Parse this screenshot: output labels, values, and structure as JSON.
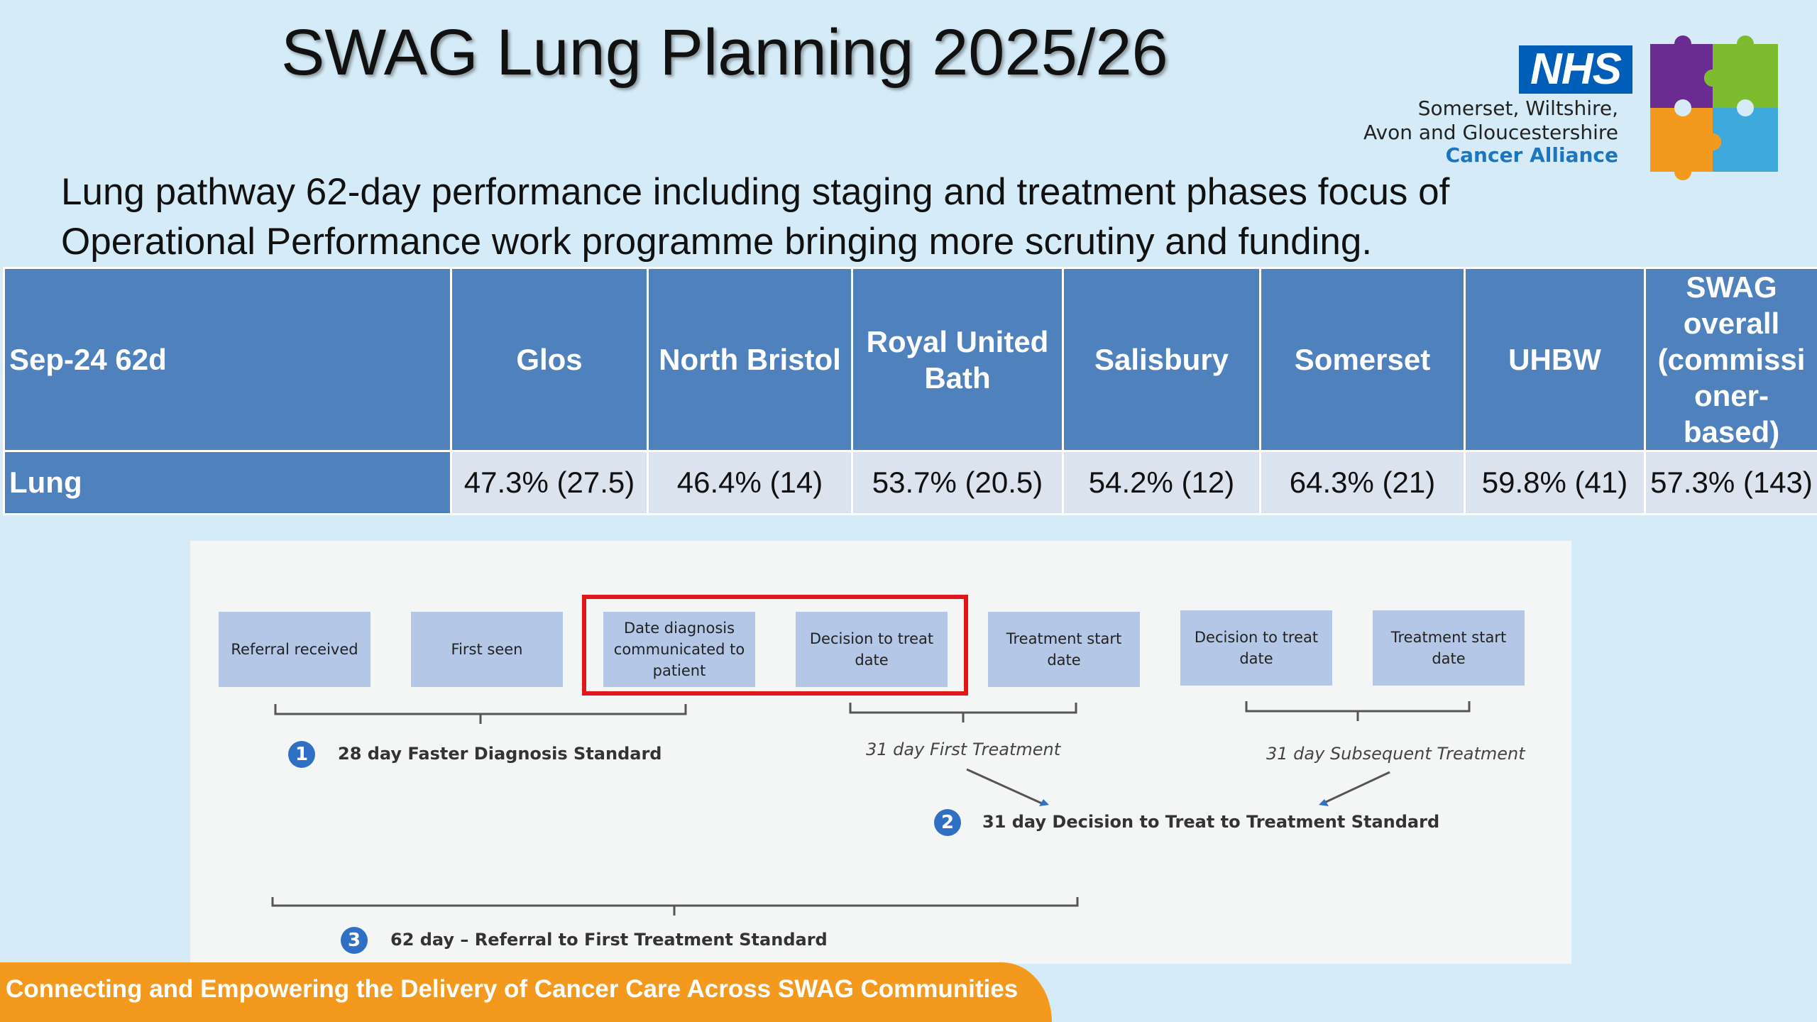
{
  "slide": {
    "title": "SWAG Lung Planning 2025/26",
    "subtitle": "Lung pathway 62-day performance including staging and treatment phases focus of Operational Performance work programme bringing more scrutiny and funding."
  },
  "logo": {
    "nhs": "NHS",
    "line1": "Somerset, Wiltshire,",
    "line2": "Avon and Gloucestershire",
    "line3": "Cancer Alliance"
  },
  "table": {
    "corner": "Sep-24  62d",
    "columns": [
      "Glos",
      "North Bristol",
      "Royal United Bath",
      "Salisbury",
      "Somerset",
      "UHBW",
      "SWAG overall (commissi oner-based)"
    ],
    "rows": [
      {
        "label": "Lung",
        "cells": [
          "47.3% (27.5)",
          "46.4% (14)",
          "53.7% (20.5)",
          "54.2% (12)",
          "64.3% (21)",
          "59.8% (41)",
          "57.3% (143)"
        ]
      }
    ]
  },
  "diagram": {
    "steps": [
      "Referral received",
      "First seen",
      "Date diagnosis communicated to patient",
      "Decision to treat date",
      "Treatment start date",
      "Decision to treat date",
      "Treatment start date"
    ],
    "first_treatment": "31 day First Treatment",
    "subsequent_treatment": "31 day Subsequent Treatment",
    "standards": [
      {
        "num": "1",
        "label": "28 day Faster Diagnosis Standard"
      },
      {
        "num": "2",
        "label": "31 day Decision to Treat to Treatment Standard"
      },
      {
        "num": "3",
        "label": "62 day – Referral to First Treatment Standard"
      }
    ]
  },
  "footer": {
    "text": "Connecting and Empowering the Delivery of Cancer Care Across SWAG Communities"
  },
  "colors": {
    "background": "#d5ebf7",
    "table_header": "#4f81bd",
    "table_cell": "#dbe3ef",
    "highlight": "#e3161b",
    "footer": "#f39a1e",
    "nhs_blue": "#005eb8"
  }
}
